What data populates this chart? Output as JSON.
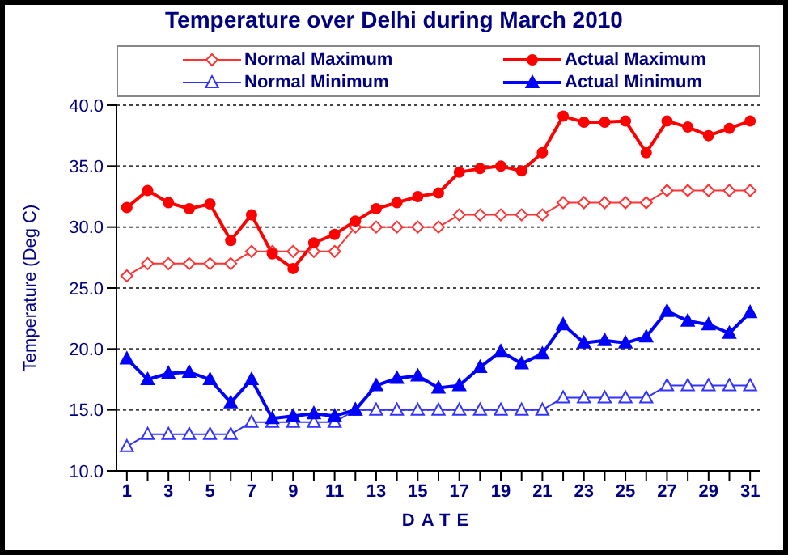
{
  "chart_data": {
    "type": "line",
    "title": "Temperature over Delhi during March 2010",
    "xlabel": "DATE",
    "ylabel": "Temperature (Deg C)",
    "x": [
      1,
      2,
      3,
      4,
      5,
      6,
      7,
      8,
      9,
      10,
      11,
      12,
      13,
      14,
      15,
      16,
      17,
      18,
      19,
      20,
      21,
      22,
      23,
      24,
      25,
      26,
      27,
      28,
      29,
      30,
      31
    ],
    "xlim": [
      0.5,
      31.5
    ],
    "xticks": [
      1,
      {
        "value": 2,
        "label": null
      },
      3,
      {
        "value": 4,
        "label": null
      },
      5,
      {
        "value": 6,
        "label": null
      },
      7,
      {
        "value": 8,
        "label": null
      },
      9,
      {
        "value": 10,
        "label": null
      },
      11,
      {
        "value": 12,
        "label": null
      },
      13,
      {
        "value": 14,
        "label": null
      },
      15,
      {
        "value": 16,
        "label": null
      },
      17,
      {
        "value": 18,
        "label": null
      },
      19,
      {
        "value": 20,
        "label": null
      },
      21,
      {
        "value": 22,
        "label": null
      },
      23,
      {
        "value": 24,
        "label": null
      },
      25,
      {
        "value": 26,
        "label": null
      },
      27,
      {
        "value": 28,
        "label": null
      },
      29,
      {
        "value": 30,
        "label": null
      },
      31
    ],
    "series": [
      {
        "name": "Normal Maximum",
        "color": "#ff3333",
        "marker": "diamond",
        "values": [
          26,
          27,
          27,
          27,
          27,
          27,
          28,
          28,
          28,
          28,
          28,
          30,
          30,
          30,
          30,
          30,
          31,
          31,
          31,
          31,
          31,
          32,
          32,
          32,
          32,
          32,
          33,
          33,
          33,
          33,
          33
        ]
      },
      {
        "name": "Actual Maximum",
        "color": "#ff0000",
        "marker": "circle",
        "values": [
          31.6,
          33.0,
          32.0,
          31.5,
          31.9,
          28.9,
          31.0,
          27.8,
          26.6,
          28.7,
          29.4,
          30.5,
          31.5,
          32.0,
          32.5,
          32.8,
          34.5,
          34.8,
          35.0,
          34.6,
          36.1,
          39.1,
          38.6,
          38.6,
          38.7,
          36.1,
          38.7,
          38.2,
          37.5,
          38.1,
          38.7
        ]
      },
      {
        "name": "Normal Minimum",
        "color": "#3333ff",
        "marker": "triangle",
        "values": [
          12,
          13,
          13,
          13,
          13,
          13,
          14,
          14,
          14,
          14,
          14,
          15,
          15,
          15,
          15,
          15,
          15,
          15,
          15,
          15,
          15,
          16,
          16,
          16,
          16,
          16,
          17,
          17,
          17,
          17,
          17
        ]
      },
      {
        "name": "Actual Minimum",
        "color": "#0000ff",
        "marker": "triangle",
        "values": [
          19.2,
          17.5,
          18.0,
          18.1,
          17.5,
          15.6,
          17.5,
          14.3,
          14.5,
          14.7,
          14.5,
          15.0,
          17.0,
          17.6,
          17.8,
          16.8,
          17.0,
          18.5,
          19.8,
          18.8,
          19.6,
          22.0,
          20.5,
          20.7,
          20.5,
          21.0,
          23.1,
          22.3,
          22.0,
          21.3,
          23.0
        ]
      }
    ],
    "ylim": [
      10,
      40
    ],
    "yticks": [
      {
        "value": 10,
        "label": "10.0"
      },
      {
        "value": 15,
        "label": "15.0"
      },
      {
        "value": 20,
        "label": "20.0"
      },
      {
        "value": 25,
        "label": "25.0"
      },
      {
        "value": 30,
        "label": "30.0"
      },
      {
        "value": 35,
        "label": "35.0"
      },
      {
        "value": 40,
        "label": "40.0"
      }
    ],
    "grid": "y",
    "legend": "top"
  }
}
